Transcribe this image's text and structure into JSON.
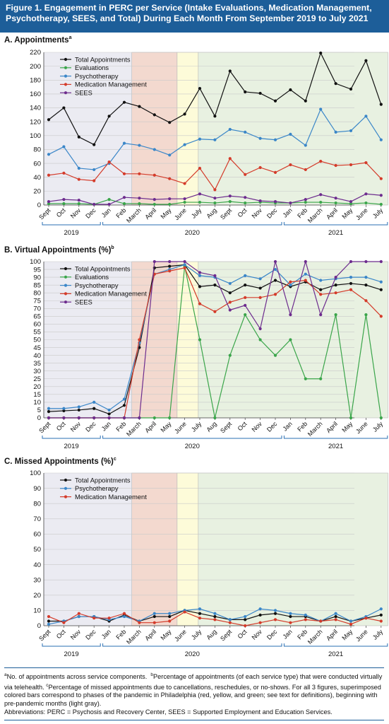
{
  "title": "Figure 1. Engagement in PERC per Service (Intake Evaluations, Medication Management, Psychotherapy, SEES, and Total) During Each Month From September 2019 to July 2021",
  "phases": {
    "gray": "#ebebf2",
    "red": "#f3d9cf",
    "yellow": "#fdfbd9",
    "green": "#e8f1e1"
  },
  "x_months": [
    "Sept",
    "Oct",
    "Nov",
    "Dec",
    "Jan",
    "Feb",
    "March",
    "April",
    "May",
    "June",
    "July",
    "Aug",
    "Sept",
    "Oct",
    "Nov",
    "Dec",
    "Jan",
    "Feb",
    "March",
    "April",
    "May",
    "June",
    "July"
  ],
  "years": [
    {
      "label": "2019",
      "from": 0,
      "to": 3
    },
    {
      "label": "2020",
      "from": 4,
      "to": 15
    },
    {
      "label": "2021",
      "from": 16,
      "to": 22
    }
  ],
  "chart_data": [
    {
      "panel": "A",
      "type": "line",
      "title": "A. Appointments",
      "footnote_marker": "a",
      "ylim": [
        0,
        220
      ],
      "yticks": [
        0,
        20,
        40,
        60,
        80,
        100,
        120,
        140,
        160,
        180,
        200,
        220
      ],
      "grid": true,
      "legend_position": "top-left",
      "series": [
        {
          "name": "Total Appointments",
          "color": "#111111",
          "values": [
            123,
            140,
            98,
            87,
            128,
            148,
            142,
            130,
            119,
            131,
            168,
            128,
            193,
            163,
            161,
            150,
            166,
            150,
            219,
            175,
            167,
            208,
            145
          ]
        },
        {
          "name": "Evaluations",
          "color": "#3aa54a",
          "values": [
            2,
            2,
            2,
            1,
            8,
            2,
            2,
            1,
            1,
            4,
            4,
            3,
            5,
            3,
            4,
            3,
            3,
            4,
            4,
            3,
            2,
            3,
            1
          ]
        },
        {
          "name": "Psychotherapy",
          "color": "#3a86c8",
          "values": [
            73,
            84,
            53,
            51,
            60,
            89,
            86,
            80,
            72,
            87,
            95,
            94,
            109,
            105,
            96,
            94,
            102,
            86,
            138,
            105,
            107,
            128,
            94
          ]
        },
        {
          "name": "Medication Management",
          "color": "#d43b2a",
          "values": [
            43,
            46,
            37,
            35,
            62,
            45,
            45,
            43,
            38,
            31,
            53,
            22,
            67,
            44,
            54,
            47,
            58,
            51,
            63,
            57,
            58,
            61,
            38
          ]
        },
        {
          "name": "SEES",
          "color": "#6d2c8e",
          "values": [
            5,
            8,
            7,
            1,
            1,
            11,
            10,
            8,
            9,
            9,
            16,
            10,
            13,
            11,
            6,
            5,
            3,
            8,
            15,
            10,
            5,
            16,
            14
          ]
        }
      ]
    },
    {
      "panel": "B",
      "type": "line",
      "title": "B. Virtual Appointments (%)",
      "footnote_marker": "b",
      "ylim": [
        0,
        100
      ],
      "yticks": [
        0,
        5,
        10,
        15,
        20,
        25,
        30,
        35,
        40,
        45,
        50,
        55,
        60,
        65,
        70,
        75,
        80,
        85,
        90,
        95,
        100
      ],
      "grid": true,
      "legend_position": "top-left",
      "series": [
        {
          "name": "Total Appointments",
          "color": "#111111",
          "values": [
            4,
            4.5,
            5,
            6,
            2.5,
            8,
            45,
            96,
            97,
            98,
            84,
            85,
            80,
            85,
            83,
            88,
            84,
            87,
            82,
            85,
            86,
            85,
            82
          ]
        },
        {
          "name": "Evaluations",
          "color": "#3aa54a",
          "values": [
            0,
            0,
            0,
            0,
            0,
            0,
            0,
            0,
            0,
            97,
            50,
            0,
            40,
            66,
            50,
            40,
            50,
            25,
            25,
            66,
            0,
            66,
            0
          ]
        },
        {
          "name": "Psychotherapy",
          "color": "#3a86c8",
          "values": [
            6,
            6,
            7,
            10,
            5,
            12,
            48,
            92,
            95,
            98,
            91,
            90,
            86,
            91,
            89,
            95,
            85,
            92,
            88,
            89,
            90,
            90,
            87
          ]
        },
        {
          "name": "Medication Management",
          "color": "#d43b2a",
          "values": [
            0,
            0,
            0,
            0,
            0,
            0,
            50,
            92,
            94,
            96,
            73,
            68,
            74,
            77,
            77,
            79,
            87,
            88,
            79,
            80,
            82,
            75,
            65
          ]
        },
        {
          "name": "SEES",
          "color": "#6d2c8e",
          "values": [
            0,
            0,
            0,
            0,
            0,
            0,
            0,
            100,
            100,
            100,
            93,
            91,
            69,
            72,
            57,
            100,
            66,
            100,
            66,
            90,
            100,
            100,
            100
          ]
        }
      ]
    },
    {
      "panel": "C",
      "type": "line",
      "title": "C. Missed Appointments (%)",
      "footnote_marker": "c",
      "ylim": [
        0,
        100
      ],
      "yticks": [
        0,
        10,
        20,
        30,
        40,
        50,
        60,
        70,
        80,
        90,
        100
      ],
      "grid": true,
      "legend_position": "top-left",
      "series": [
        {
          "name": "Total Appointments",
          "color": "#111111",
          "values": [
            3,
            3,
            6,
            6,
            3,
            7,
            3,
            6,
            6,
            10,
            8,
            6,
            4,
            4,
            7,
            8,
            6,
            6,
            3,
            6,
            3,
            5,
            7
          ]
        },
        {
          "name": "Psychotherapy",
          "color": "#3a86c8",
          "values": [
            1,
            3,
            6,
            6,
            4,
            6,
            3,
            8,
            8,
            10,
            11,
            8,
            4,
            6,
            11,
            10,
            8,
            7,
            3,
            8,
            3,
            6,
            11
          ]
        },
        {
          "name": "Medication Management",
          "color": "#d43b2a",
          "values": [
            6,
            2,
            8,
            5,
            5,
            8,
            2,
            2,
            3,
            9,
            5,
            4,
            2,
            0,
            2,
            4,
            2,
            4,
            3,
            4,
            1,
            5,
            3
          ]
        }
      ]
    }
  ],
  "footnote": {
    "a_marker": "a",
    "a_text": "No. of appointments across service components.",
    "b_marker": "b",
    "b_text": "Percentage of appointments (of each service type) that were conducted virtually via telehealth.",
    "c_marker": "c",
    "c_text": "Percentage of missed appointments due to cancellations, reschedules, or no-shows. For all 3 figures, superimposed colored bars correspond to phases of the pandemic in Philadelphia (red, yellow, and green; see text for definitions), beginning with pre-pandemic months (light gray).",
    "abbreviations": "Abbreviations: PERC = Psychosis and Recovery Center, SEES = Supported Employment and Education Services."
  }
}
